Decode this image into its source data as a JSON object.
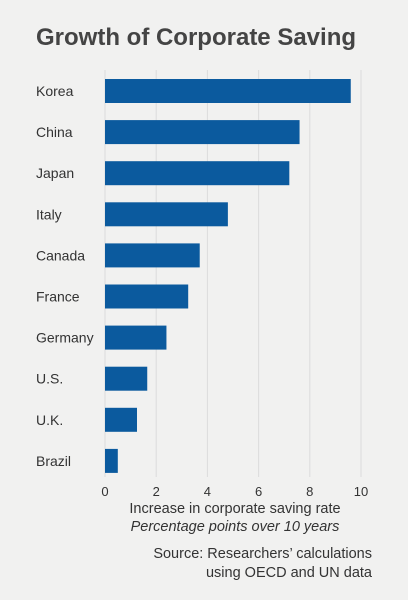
{
  "chart_data": {
    "type": "bar",
    "orientation": "horizontal",
    "title": "Growth of Corporate Saving",
    "categories": [
      "Korea",
      "China",
      "Japan",
      "Italy",
      "Canada",
      "France",
      "Germany",
      "U.S.",
      "U.K.",
      "Brazil"
    ],
    "values": [
      9.6,
      7.6,
      7.2,
      4.8,
      3.7,
      3.25,
      2.4,
      1.65,
      1.25,
      0.5
    ],
    "xlabel": "Increase in corporate saving rate",
    "xlabel_sub": "Percentage points over 10 years",
    "xlim": [
      0,
      10
    ],
    "xticks": [
      0,
      2,
      4,
      6,
      8,
      10
    ],
    "grid": true,
    "bar_color": "#0b5a9e",
    "grid_color": "#dcdcdc"
  },
  "source_lines": [
    "Source: Researchers’ calculations",
    "using OECD and UN data"
  ]
}
